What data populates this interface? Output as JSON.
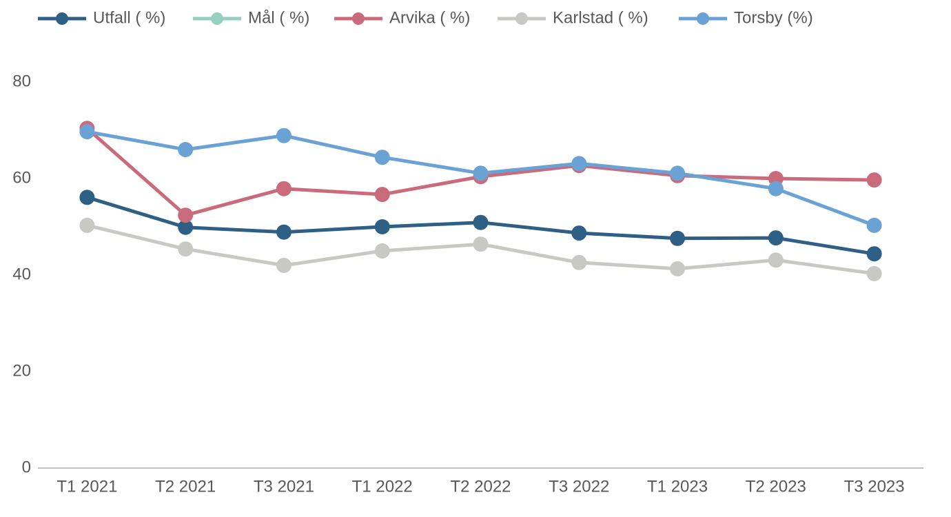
{
  "chart_data": {
    "type": "line",
    "categories": [
      "T1 2021",
      "T2 2021",
      "T3 2021",
      "T1 2022",
      "T2 2022",
      "T3 2022",
      "T1 2023",
      "T2 2023",
      "T3 2023"
    ],
    "series": [
      {
        "name": "Utfall ( %)",
        "color": "#2e5f85",
        "values": [
          56.1,
          49.9,
          48.9,
          50,
          50.9,
          48.7,
          47.6,
          47.7,
          44.4
        ]
      },
      {
        "name": "Mål ( %)",
        "color": "#96cfc0",
        "values": [
          null,
          null,
          null,
          null,
          null,
          null,
          null,
          null,
          null
        ]
      },
      {
        "name": "Arvika ( %)",
        "color": "#c96b7a",
        "values": [
          70.4,
          52.4,
          57.9,
          56.7,
          60.4,
          62.7,
          60.6,
          60,
          59.7
        ]
      },
      {
        "name": "Karlstad ( %)",
        "color": "#c8c8c4",
        "values": [
          50.3,
          45.4,
          42,
          45,
          46.4,
          42.6,
          41.3,
          43.1,
          40.3
        ]
      },
      {
        "name": "Torsby (%)",
        "color": "#6aa2d6",
        "values": [
          69.7,
          66,
          68.9,
          64.4,
          61.1,
          63.1,
          61.1,
          57.9,
          50.3
        ]
      }
    ],
    "ylim": [
      0,
      80
    ],
    "yticks": [
      0,
      20,
      40,
      60,
      80
    ],
    "grid": false
  }
}
